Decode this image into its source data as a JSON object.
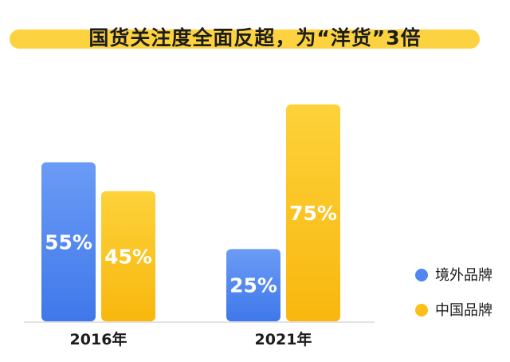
{
  "chart_data": {
    "type": "bar",
    "title": "国货关注度全面反超，为“洋货”3倍",
    "categories": [
      "2016年",
      "2021年"
    ],
    "series": [
      {
        "name": "境外品牌",
        "values": [
          55,
          25
        ],
        "labels": [
          "55%",
          "25%"
        ],
        "color": "#4f86ef"
      },
      {
        "name": "中国品牌",
        "values": [
          45,
          75
        ],
        "labels": [
          "45%",
          "75%"
        ],
        "color": "#fbbf17"
      }
    ],
    "ylim": [
      0,
      75
    ],
    "legend_position": "right",
    "grid": false
  }
}
